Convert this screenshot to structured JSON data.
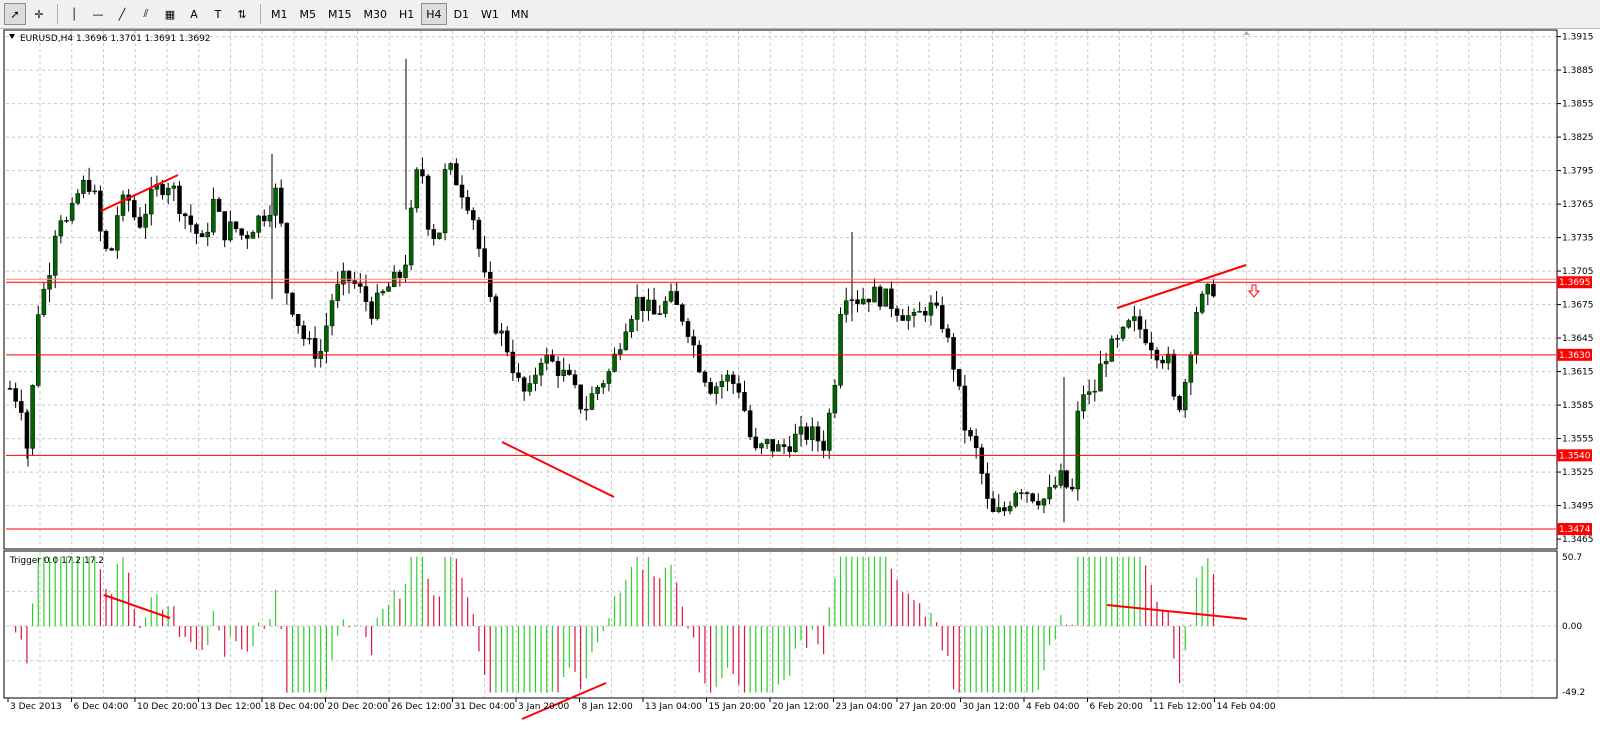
{
  "toolbar": {
    "tools": [
      {
        "name": "cursor-icon",
        "glyph": "➚"
      },
      {
        "name": "crosshair-icon",
        "glyph": "✛"
      },
      {
        "name": "vertical-line-icon",
        "glyph": "│"
      },
      {
        "name": "horizontal-line-icon",
        "glyph": "—"
      },
      {
        "name": "trendline-icon",
        "glyph": "╱"
      },
      {
        "name": "channel-icon",
        "glyph": "⫽"
      },
      {
        "name": "fibonacci-icon",
        "glyph": "▦"
      },
      {
        "name": "text-icon",
        "glyph": "A"
      },
      {
        "name": "label-icon",
        "glyph": "T"
      },
      {
        "name": "arrows-icon",
        "glyph": "⇅"
      }
    ],
    "timeframes": [
      "M1",
      "M5",
      "M15",
      "M30",
      "H1",
      "H4",
      "D1",
      "W1",
      "MN"
    ],
    "active_timeframe": "H4"
  },
  "chart": {
    "symbol_label": "EURUSD,H4  1.3696 1.3701 1.3691 1.3692",
    "indicator_label": "Trigger 0.0 17.2 17.2",
    "price_axis": [
      "1.3915",
      "1.3885",
      "1.3855",
      "1.3825",
      "1.3795",
      "1.3765",
      "1.3735",
      "1.3705",
      "1.3675",
      "1.3645",
      "1.3615",
      "1.3585",
      "1.3555",
      "1.3525",
      "1.3495",
      "1.3465"
    ],
    "indicator_axis": [
      "50.7",
      "0.00",
      "-49.2"
    ],
    "time_axis": [
      "3 Dec 2013",
      "6 Dec 04:00",
      "10 Dec 20:00",
      "13 Dec 12:00",
      "18 Dec 04:00",
      "20 Dec 20:00",
      "26 Dec 12:00",
      "31 Dec 04:00",
      "3 Jan 20:00",
      "8 Jan 12:00",
      "13 Jan 04:00",
      "15 Jan 20:00",
      "20 Jan 12:00",
      "23 Jan 04:00",
      "27 Jan 20:00",
      "30 Jan 12:00",
      "4 Feb 04:00",
      "6 Feb 20:00",
      "11 Feb 12:00",
      "14 Feb 04:00"
    ],
    "level_tags": [
      "1.3695",
      "1.3630",
      "1.3540",
      "1.3474"
    ],
    "colors": {
      "bull": "#006400",
      "bear": "#000000",
      "hist_up": "#32cd32",
      "hist_down": "#dc143c",
      "line": "#ff0000"
    }
  }
}
